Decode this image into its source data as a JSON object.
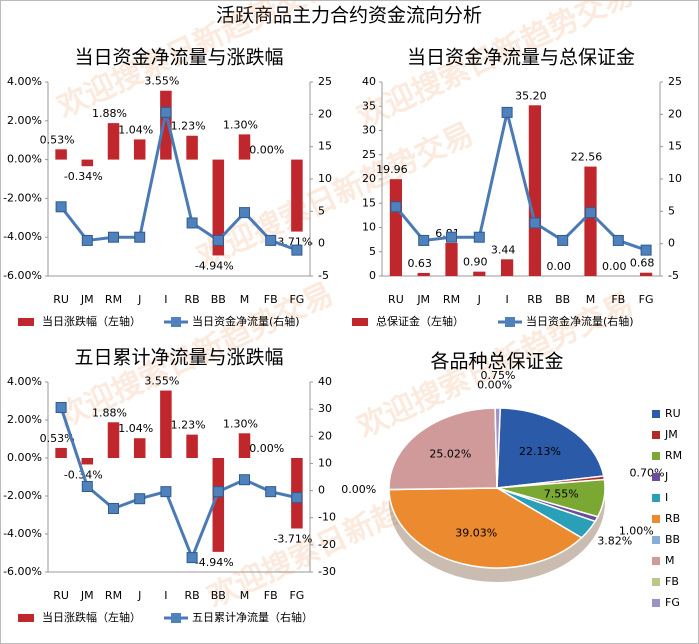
{
  "title": "活跃商品主力合约资金流向分析",
  "watermark": "欢迎搜索日新趋势交易",
  "chart_data": [
    {
      "type": "combo",
      "title": "当日资金净流量与涨跌幅",
      "categories": [
        "RU",
        "JM",
        "RM",
        "J",
        "I",
        "RB",
        "BB",
        "M",
        "FB",
        "FG"
      ],
      "series": [
        {
          "name": "当日涨跌幅（左轴）",
          "color": "#c0272d",
          "type": "bar",
          "values": [
            0.53,
            -0.34,
            1.88,
            1.04,
            3.55,
            1.23,
            -4.94,
            1.3,
            0.0,
            -3.71
          ],
          "value_labels": [
            "0.53%",
            "-0.34%",
            "1.88%",
            "1.04%",
            "3.55%",
            "1.23%",
            "-4.94%",
            "1.30%",
            "0.00%",
            "-3.71%"
          ]
        },
        {
          "name": "当日资金净流量(右轴)",
          "color": "#4f81bd",
          "type": "line",
          "axis": "y2",
          "values": [
            5.7,
            0.5,
            1,
            1,
            20.3,
            3.2,
            0.5,
            4.8,
            0.5,
            -1
          ]
        }
      ],
      "ylim": [
        -6,
        4
      ],
      "yticks": [
        {
          "value": -6,
          "label": "-6.00%"
        },
        {
          "value": -4,
          "label": "-4.00%"
        },
        {
          "value": -2,
          "label": "-2.00%"
        },
        {
          "value": 0,
          "label": "0.00%"
        },
        {
          "value": 2,
          "label": "2.00%"
        },
        {
          "value": 4,
          "label": "4.00%"
        }
      ],
      "y2lim": [
        -5,
        25
      ],
      "y2ticks": [
        -5,
        0,
        5,
        10,
        15,
        20,
        25
      ],
      "grid": false
    },
    {
      "type": "combo",
      "title": "当日资金净流量与总保证金",
      "categories": [
        "RU",
        "JM",
        "RM",
        "J",
        "I",
        "RB",
        "BB",
        "M",
        "FB",
        "FG"
      ],
      "series": [
        {
          "name": "总保证金（左轴）",
          "color": "#c0272d",
          "type": "bar",
          "values": [
            19.96,
            0.63,
            6.81,
            0.9,
            3.44,
            35.2,
            0.0,
            22.56,
            0.0,
            0.68
          ],
          "value_labels": [
            "19.96",
            "0.63",
            "6.81",
            "0.90",
            "3.44",
            "35.20",
            "0.00",
            "22.56",
            "0.00",
            "0.68"
          ]
        },
        {
          "name": "当日资金净流量(右轴)",
          "color": "#4f81bd",
          "type": "line",
          "axis": "y2",
          "values": [
            5.7,
            0.5,
            1,
            1,
            20.3,
            3.2,
            0.5,
            4.8,
            0.5,
            -1
          ]
        }
      ],
      "ylim": [
        0,
        40
      ],
      "yticks": [
        0,
        5,
        10,
        15,
        20,
        25,
        30,
        35,
        40
      ],
      "y2lim": [
        -5,
        25
      ],
      "y2ticks": [
        -5,
        0,
        5,
        10,
        15,
        20,
        25
      ],
      "grid": false
    },
    {
      "type": "combo",
      "title": "五日累计净流量与涨跌幅",
      "categories": [
        "RU",
        "JM",
        "RM",
        "J",
        "I",
        "RB",
        "BB",
        "M",
        "FB",
        "FG"
      ],
      "series": [
        {
          "name": "当日涨跌幅（左轴）",
          "color": "#c0272d",
          "type": "bar",
          "values": [
            0.53,
            -0.34,
            1.88,
            1.04,
            3.55,
            1.23,
            -4.94,
            1.3,
            0.0,
            -3.71
          ],
          "value_labels": [
            "0.53%",
            "-0.34%",
            "1.88%",
            "1.04%",
            "3.55%",
            "1.23%",
            "-4.94%",
            "1.30%",
            "0.00%",
            "-3.71%"
          ]
        },
        {
          "name": "五日累计净流量（右轴）",
          "color": "#4f81bd",
          "type": "line",
          "axis": "y2",
          "values": [
            30.6,
            1.5,
            -6.6,
            -3,
            -0.4,
            -24.7,
            -0.4,
            4,
            -0.4,
            -2.6
          ]
        }
      ],
      "ylim": [
        -6,
        4
      ],
      "yticks": [
        {
          "value": -6,
          "label": "-6.00%"
        },
        {
          "value": -4,
          "label": "-4.00%"
        },
        {
          "value": -2,
          "label": "-2.00%"
        },
        {
          "value": 0,
          "label": "0.00%"
        },
        {
          "value": 2,
          "label": "2.00%"
        },
        {
          "value": 4,
          "label": "4.00%"
        }
      ],
      "y2lim": [
        -30,
        40
      ],
      "y2ticks": [
        -30,
        -20,
        -10,
        0,
        10,
        20,
        30,
        40
      ],
      "grid": false
    },
    {
      "type": "pie",
      "title": "各品种总保证金",
      "categories": [
        "RU",
        "JM",
        "RM",
        "J",
        "I",
        "RB",
        "BB",
        "M",
        "FB",
        "FG"
      ],
      "values": [
        22.13,
        0.7,
        7.55,
        1.0,
        3.82,
        39.03,
        0.0,
        25.02,
        0.0,
        0.75
      ],
      "value_labels": [
        "22.13%",
        "0.70%",
        "7.55%",
        "1.00%",
        "3.82%",
        "39.03%",
        "0.00%",
        "25.02%",
        "0.00%",
        "0.75%"
      ],
      "colors": [
        "#2a5aa8",
        "#b22a2a",
        "#7aa832",
        "#6a4c9c",
        "#2aa0b8",
        "#ec8a30",
        "#86acd8",
        "#d09a9a",
        "#b8c98a",
        "#a090c8"
      ]
    }
  ]
}
